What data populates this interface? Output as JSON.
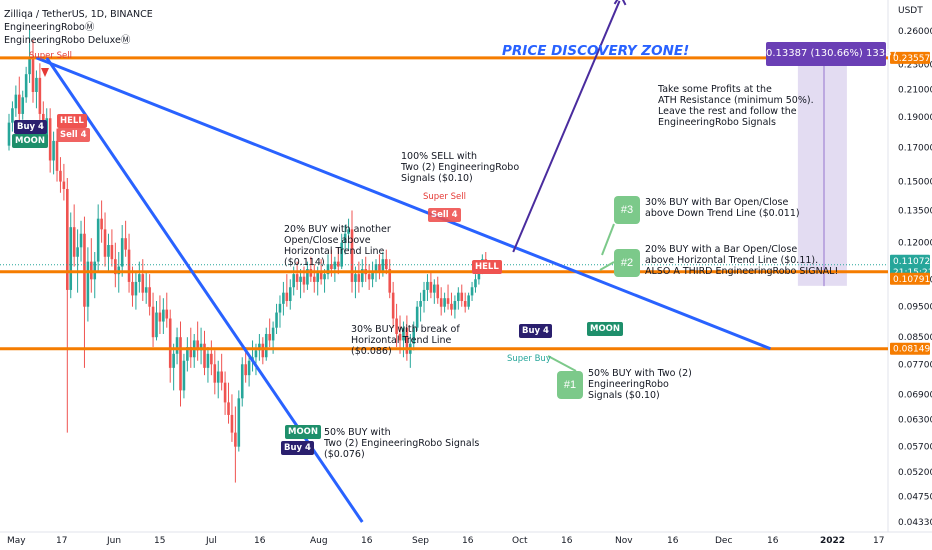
{
  "header": {
    "symbol": "Zilliqa / TetherUS, 1D, BINANCE",
    "indicator1": "EngineeringRoboⓂ",
    "indicator2": "EngineeringRobo DeluxeⓂ"
  },
  "banner": "PRICE DISCOVERY ZONE!",
  "measure_label": "0.13387 (130.66%) 13387",
  "notes": [
    {
      "id": "note-ath",
      "text": "Take some Profits at the\nATH Resistance (minimum 50%).\nLeave the rest and follow the\nEngineeringRobo Signals"
    },
    {
      "id": "note-100sell",
      "text": "100% SELL with\nTwo (2) EngineeringRobo\nSignals ($0.10)"
    },
    {
      "id": "note-20buy-another",
      "text": "20% BUY with another\nOpen/Close above\nHorizontal Trend Line\n($0.114)"
    },
    {
      "id": "note-30buy-bar",
      "text": "30% BUY with Bar Open/Close\nabove Down Trend Line ($0.011)"
    },
    {
      "id": "note-20buy-bar",
      "text": "20% BUY with a Bar Open/Close\nabove Horizontal Trend Line ($0.11).\nALSO A THIRD EngineeringRobo SIGNAL!"
    },
    {
      "id": "note-30buy-break",
      "text": "30% BUY with break of\nHorizontal Trend Line\n($0.086)"
    },
    {
      "id": "note-50buy-two",
      "text": "50% BUY with Two (2)\nEngineeringRobo\nSignals ($0.10)"
    },
    {
      "id": "note-50buy-moon",
      "text": "50% BUY with\nTwo (2) EngineeringRobo Signals\n($0.076)"
    }
  ],
  "bubbles": [
    "#1",
    "#2",
    "#3"
  ],
  "signals": {
    "super_sell": "Super Sell",
    "super_buy": "Super Buy",
    "buy4": "Buy 4",
    "sell4": "Sell 4",
    "moon": "MOON",
    "hell": "HELL"
  },
  "chart_data": {
    "type": "candlestick",
    "title": "Zilliqa / TetherUS, 1D, BINANCE",
    "currency": "USDT",
    "y_scale": "log",
    "ylim": [
      0.0433,
      0.291
    ],
    "y_ticks": [
      "0.26000",
      "0.23000",
      "0.21000",
      "0.19000",
      "0.17000",
      "0.15000",
      "0.13500",
      "0.12000",
      "0.10500",
      "0.09500",
      "0.08500",
      "0.07700",
      "0.06900",
      "0.06300",
      "0.05700",
      "0.05200",
      "0.04750",
      "0.04330"
    ],
    "x_ticks": [
      "May",
      "17",
      "Jun",
      "15",
      "Jul",
      "16",
      "Aug",
      "16",
      "Sep",
      "16",
      "Oct",
      "16",
      "Nov",
      "16",
      "Dec",
      "16",
      "2022",
      "17"
    ],
    "price_tags": [
      {
        "value": "0.23557",
        "color": "#f57c00"
      },
      {
        "value": "0.11072",
        "color": "#26a69a"
      },
      {
        "value": "21:15:21",
        "color": "#26a69a"
      },
      {
        "value": "0.10791",
        "color": "#f57c00"
      },
      {
        "value": "0.08149",
        "color": "#f57c00"
      }
    ],
    "horizontal_levels": [
      0.23557,
      0.10791,
      0.08149
    ],
    "trend_lines": [
      {
        "name": "down-trend-long",
        "points": [
          [
            "May 9",
            0.2356
          ],
          [
            "Dec 9",
            0.0815
          ]
        ]
      },
      {
        "name": "down-trend-steep",
        "points": [
          [
            "May 12",
            0.2356
          ],
          [
            "Aug 12",
            0.0433
          ]
        ]
      },
      {
        "name": "breakout-arrow",
        "points": [
          [
            "Sep 25",
            0.116
          ],
          [
            "Oct 26",
            0.29
          ]
        ]
      }
    ],
    "candles": {
      "start": "May 1",
      "ohlc": [
        [
          0.171,
          0.192,
          0.168,
          0.186
        ],
        [
          0.186,
          0.201,
          0.18,
          0.196
        ],
        [
          0.196,
          0.213,
          0.19,
          0.206
        ],
        [
          0.206,
          0.22,
          0.186,
          0.192
        ],
        [
          0.192,
          0.209,
          0.188,
          0.204
        ],
        [
          0.204,
          0.228,
          0.2,
          0.222
        ],
        [
          0.222,
          0.262,
          0.215,
          0.236
        ],
        [
          0.236,
          0.252,
          0.2,
          0.208
        ],
        [
          0.208,
          0.225,
          0.196,
          0.219
        ],
        [
          0.219,
          0.231,
          0.186,
          0.192
        ],
        [
          0.192,
          0.201,
          0.17,
          0.176
        ],
        [
          0.176,
          0.196,
          0.17,
          0.189
        ],
        [
          0.189,
          0.196,
          0.155,
          0.162
        ],
        [
          0.162,
          0.18,
          0.154,
          0.174
        ],
        [
          0.174,
          0.182,
          0.15,
          0.156
        ],
        [
          0.156,
          0.164,
          0.144,
          0.15
        ],
        [
          0.15,
          0.16,
          0.14,
          0.146
        ],
        [
          0.146,
          0.152,
          0.06,
          0.101
        ],
        [
          0.101,
          0.134,
          0.098,
          0.127
        ],
        [
          0.127,
          0.138,
          0.11,
          0.114
        ],
        [
          0.114,
          0.126,
          0.1,
          0.118
        ],
        [
          0.118,
          0.13,
          0.112,
          0.124
        ],
        [
          0.124,
          0.132,
          0.076,
          0.095
        ],
        [
          0.095,
          0.118,
          0.09,
          0.112
        ],
        [
          0.112,
          0.122,
          0.1,
          0.105
        ],
        [
          0.105,
          0.116,
          0.098,
          0.112
        ],
        [
          0.112,
          0.138,
          0.108,
          0.131
        ],
        [
          0.131,
          0.14,
          0.12,
          0.126
        ],
        [
          0.126,
          0.134,
          0.11,
          0.114
        ],
        [
          0.114,
          0.124,
          0.108,
          0.119
        ],
        [
          0.119,
          0.126,
          0.11,
          0.113
        ],
        [
          0.113,
          0.12,
          0.102,
          0.107
        ],
        [
          0.107,
          0.116,
          0.1,
          0.11
        ],
        [
          0.11,
          0.128,
          0.106,
          0.122
        ],
        [
          0.122,
          0.13,
          0.114,
          0.117
        ],
        [
          0.117,
          0.124,
          0.1,
          0.104
        ],
        [
          0.104,
          0.11,
          0.095,
          0.099
        ],
        [
          0.099,
          0.108,
          0.094,
          0.104
        ],
        [
          0.104,
          0.112,
          0.1,
          0.107
        ],
        [
          0.107,
          0.113,
          0.097,
          0.1
        ],
        [
          0.1,
          0.108,
          0.096,
          0.102
        ],
        [
          0.102,
          0.107,
          0.092,
          0.095
        ],
        [
          0.095,
          0.1,
          0.082,
          0.085
        ],
        [
          0.085,
          0.097,
          0.084,
          0.093
        ],
        [
          0.093,
          0.099,
          0.086,
          0.09
        ],
        [
          0.09,
          0.098,
          0.086,
          0.094
        ],
        [
          0.094,
          0.1,
          0.088,
          0.091
        ],
        [
          0.091,
          0.094,
          0.072,
          0.076
        ],
        [
          0.076,
          0.083,
          0.07,
          0.08
        ],
        [
          0.08,
          0.088,
          0.077,
          0.085
        ],
        [
          0.085,
          0.09,
          0.066,
          0.07
        ],
        [
          0.07,
          0.08,
          0.068,
          0.078
        ],
        [
          0.078,
          0.085,
          0.075,
          0.082
        ],
        [
          0.082,
          0.088,
          0.076,
          0.079
        ],
        [
          0.079,
          0.086,
          0.076,
          0.084
        ],
        [
          0.084,
          0.09,
          0.078,
          0.081
        ],
        [
          0.081,
          0.088,
          0.077,
          0.083
        ],
        [
          0.083,
          0.087,
          0.074,
          0.076
        ],
        [
          0.076,
          0.082,
          0.072,
          0.08
        ],
        [
          0.08,
          0.084,
          0.074,
          0.077
        ],
        [
          0.077,
          0.081,
          0.069,
          0.072
        ],
        [
          0.072,
          0.078,
          0.068,
          0.075
        ],
        [
          0.075,
          0.08,
          0.07,
          0.072
        ],
        [
          0.072,
          0.075,
          0.064,
          0.067
        ],
        [
          0.067,
          0.072,
          0.062,
          0.064
        ],
        [
          0.064,
          0.069,
          0.058,
          0.06
        ],
        [
          0.06,
          0.066,
          0.05,
          0.057
        ],
        [
          0.057,
          0.07,
          0.056,
          0.068
        ],
        [
          0.068,
          0.079,
          0.066,
          0.077
        ],
        [
          0.077,
          0.082,
          0.072,
          0.074
        ],
        [
          0.074,
          0.08,
          0.071,
          0.078
        ],
        [
          0.078,
          0.084,
          0.075,
          0.079
        ],
        [
          0.079,
          0.083,
          0.074,
          0.081
        ],
        [
          0.081,
          0.086,
          0.078,
          0.083
        ],
        [
          0.083,
          0.085,
          0.077,
          0.079
        ],
        [
          0.079,
          0.088,
          0.078,
          0.086
        ],
        [
          0.086,
          0.091,
          0.082,
          0.084
        ],
        [
          0.084,
          0.09,
          0.08,
          0.088
        ],
        [
          0.088,
          0.096,
          0.086,
          0.093
        ],
        [
          0.093,
          0.099,
          0.088,
          0.096
        ],
        [
          0.096,
          0.104,
          0.092,
          0.1
        ],
        [
          0.1,
          0.107,
          0.095,
          0.097
        ],
        [
          0.097,
          0.105,
          0.094,
          0.102
        ],
        [
          0.102,
          0.11,
          0.099,
          0.107
        ],
        [
          0.107,
          0.112,
          0.101,
          0.104
        ],
        [
          0.104,
          0.109,
          0.098,
          0.106
        ],
        [
          0.106,
          0.11,
          0.1,
          0.103
        ],
        [
          0.103,
          0.112,
          0.101,
          0.109
        ],
        [
          0.109,
          0.114,
          0.104,
          0.106
        ],
        [
          0.106,
          0.111,
          0.1,
          0.104
        ],
        [
          0.104,
          0.11,
          0.099,
          0.108
        ],
        [
          0.108,
          0.113,
          0.103,
          0.105
        ],
        [
          0.105,
          0.109,
          0.1,
          0.107
        ],
        [
          0.107,
          0.115,
          0.105,
          0.111
        ],
        [
          0.111,
          0.117,
          0.106,
          0.109
        ],
        [
          0.109,
          0.114,
          0.104,
          0.112
        ],
        [
          0.112,
          0.118,
          0.107,
          0.11
        ],
        [
          0.11,
          0.124,
          0.109,
          0.12
        ],
        [
          0.12,
          0.128,
          0.115,
          0.124
        ],
        [
          0.124,
          0.131,
          0.117,
          0.126
        ],
        [
          0.126,
          0.135,
          0.1,
          0.104
        ],
        [
          0.104,
          0.11,
          0.098,
          0.107
        ],
        [
          0.107,
          0.112,
          0.1,
          0.104
        ],
        [
          0.104,
          0.113,
          0.102,
          0.109
        ],
        [
          0.109,
          0.114,
          0.104,
          0.107
        ],
        [
          0.107,
          0.111,
          0.101,
          0.105
        ],
        [
          0.105,
          0.112,
          0.102,
          0.108
        ],
        [
          0.108,
          0.113,
          0.104,
          0.111
        ],
        [
          0.111,
          0.115,
          0.105,
          0.108
        ],
        [
          0.108,
          0.116,
          0.106,
          0.113
        ],
        [
          0.113,
          0.117,
          0.107,
          0.109
        ],
        [
          0.109,
          0.113,
          0.098,
          0.1
        ],
        [
          0.1,
          0.104,
          0.088,
          0.091
        ],
        [
          0.091,
          0.096,
          0.082,
          0.086
        ],
        [
          0.086,
          0.092,
          0.08,
          0.084
        ],
        [
          0.084,
          0.09,
          0.079,
          0.088
        ],
        [
          0.088,
          0.092,
          0.078,
          0.08
        ],
        [
          0.08,
          0.086,
          0.076,
          0.083
        ],
        [
          0.083,
          0.09,
          0.081,
          0.088
        ],
        [
          0.088,
          0.097,
          0.087,
          0.095
        ],
        [
          0.095,
          0.1,
          0.09,
          0.097
        ],
        [
          0.097,
          0.104,
          0.093,
          0.101
        ],
        [
          0.101,
          0.107,
          0.097,
          0.104
        ],
        [
          0.104,
          0.108,
          0.098,
          0.1
        ],
        [
          0.1,
          0.105,
          0.096,
          0.103
        ],
        [
          0.103,
          0.106,
          0.096,
          0.098
        ],
        [
          0.098,
          0.102,
          0.092,
          0.095
        ],
        [
          0.095,
          0.1,
          0.093,
          0.098
        ],
        [
          0.098,
          0.103,
          0.094,
          0.096
        ],
        [
          0.096,
          0.1,
          0.092,
          0.094
        ],
        [
          0.094,
          0.099,
          0.091,
          0.097
        ],
        [
          0.097,
          0.102,
          0.094,
          0.1
        ],
        [
          0.1,
          0.103,
          0.095,
          0.097
        ],
        [
          0.097,
          0.1,
          0.093,
          0.095
        ],
        [
          0.095,
          0.1,
          0.094,
          0.099
        ],
        [
          0.099,
          0.104,
          0.097,
          0.102
        ],
        [
          0.102,
          0.107,
          0.1,
          0.105
        ],
        [
          0.105,
          0.11,
          0.103,
          0.108
        ],
        [
          0.108,
          0.115,
          0.107,
          0.113
        ],
        [
          0.113,
          0.116,
          0.108,
          0.111
        ]
      ]
    }
  }
}
